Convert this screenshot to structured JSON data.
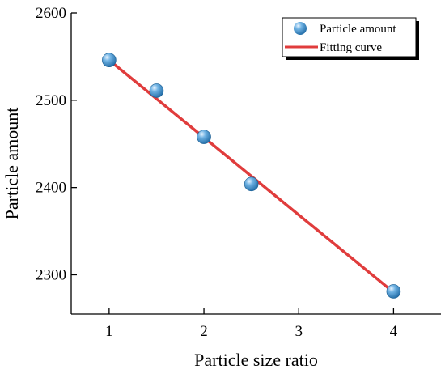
{
  "chart_data": {
    "type": "scatter",
    "title": "",
    "xlabel": "Particle size ratio",
    "ylabel": "Particle amount",
    "xlim": [
      0.6,
      4.5
    ],
    "ylim": [
      2255,
      2600
    ],
    "xticks": [
      1,
      2,
      3,
      4
    ],
    "yticks": [
      2300,
      2400,
      2500,
      2600
    ],
    "grid": false,
    "legend_position": "top-right",
    "series": [
      {
        "name": "Particle amount",
        "type": "scatter",
        "color": "#3a8fc8",
        "x": [
          1,
          1.5,
          2,
          2.5,
          4
        ],
        "y": [
          2546,
          2511,
          2458,
          2404,
          2281
        ]
      },
      {
        "name": "Fitting curve",
        "type": "line",
        "color": "#e03c3c",
        "x": [
          1,
          4
        ],
        "y": [
          2546,
          2280
        ]
      }
    ]
  }
}
